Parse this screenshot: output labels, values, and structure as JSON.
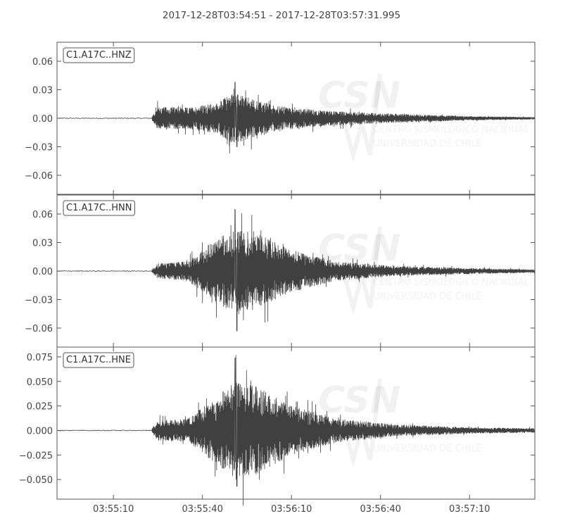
{
  "title": "2017-12-28T03:54:51  -  2017-12-28T03:57:31.995",
  "watermark": {
    "logo_text": "CSN",
    "line1": "CENTRO SISMOLÓGICO NACIONAL",
    "line2": "UNIVERSIDAD DE CHILE"
  },
  "colors": {
    "trace": "#404040",
    "axes": "#555555",
    "text": "#444444",
    "background": "#ffffff"
  },
  "chart_data": [
    {
      "type": "line",
      "label": "C1.A17C..HNZ",
      "x_start": "03:54:51",
      "x_end": "03:57:31.995",
      "ylim": [
        -0.08,
        0.08
      ],
      "yticks": [
        {
          "v": 0.06,
          "t": "0.06"
        },
        {
          "v": 0.03,
          "t": "0.03"
        },
        {
          "v": 0.0,
          "t": "0.00"
        },
        {
          "v": -0.03,
          "t": "−0.03"
        },
        {
          "v": -0.06,
          "t": "−0.06"
        }
      ],
      "onset": "03:55:23",
      "peak_time": "03:55:51",
      "peak_amplitude": 0.038,
      "min_amplitude": -0.03,
      "envelope": [
        [
          "03:55:23",
          0.002
        ],
        [
          "03:55:25",
          0.012
        ],
        [
          "03:55:35",
          0.011
        ],
        [
          "03:55:45",
          0.016
        ],
        [
          "03:55:50",
          0.027
        ],
        [
          "03:55:55",
          0.022
        ],
        [
          "03:56:05",
          0.013
        ],
        [
          "03:56:20",
          0.008
        ],
        [
          "03:56:40",
          0.005
        ],
        [
          "03:57:10",
          0.002
        ],
        [
          "03:57:31.995",
          0.001
        ]
      ]
    },
    {
      "type": "line",
      "label": "C1.A17C..HNN",
      "x_start": "03:54:51",
      "x_end": "03:57:31.995",
      "ylim": [
        -0.08,
        0.08
      ],
      "yticks": [
        {
          "v": 0.06,
          "t": "0.06"
        },
        {
          "v": 0.03,
          "t": "0.03"
        },
        {
          "v": 0.0,
          "t": "0.00"
        },
        {
          "v": -0.03,
          "t": "−0.03"
        },
        {
          "v": -0.06,
          "t": "−0.06"
        }
      ],
      "onset": "03:55:23",
      "peak_time": "03:55:51",
      "peak_amplitude": 0.065,
      "min_amplitude": -0.063,
      "envelope": [
        [
          "03:55:23",
          0.002
        ],
        [
          "03:55:25",
          0.008
        ],
        [
          "03:55:35",
          0.01
        ],
        [
          "03:55:43",
          0.03
        ],
        [
          "03:55:51",
          0.045
        ],
        [
          "03:55:58",
          0.04
        ],
        [
          "03:56:10",
          0.022
        ],
        [
          "03:56:25",
          0.01
        ],
        [
          "03:56:45",
          0.005
        ],
        [
          "03:57:10",
          0.003
        ],
        [
          "03:57:31.995",
          0.0015
        ]
      ]
    },
    {
      "type": "line",
      "label": "C1.A17C..HNE",
      "x_start": "03:54:51",
      "x_end": "03:57:31.995",
      "ylim": [
        -0.07,
        0.085
      ],
      "yticks": [
        {
          "v": 0.075,
          "t": "0.075"
        },
        {
          "v": 0.05,
          "t": "0.050"
        },
        {
          "v": 0.025,
          "t": "0.025"
        },
        {
          "v": 0.0,
          "t": "0.000"
        },
        {
          "v": -0.025,
          "t": "−0.025"
        },
        {
          "v": -0.05,
          "t": "−0.050"
        }
      ],
      "onset": "03:55:23",
      "peak_time": "03:55:51",
      "peak_amplitude": 0.074,
      "min_amplitude": -0.057,
      "envelope": [
        [
          "03:55:23",
          0.002
        ],
        [
          "03:55:25",
          0.01
        ],
        [
          "03:55:35",
          0.012
        ],
        [
          "03:55:43",
          0.03
        ],
        [
          "03:55:51",
          0.05
        ],
        [
          "03:55:58",
          0.045
        ],
        [
          "03:56:10",
          0.025
        ],
        [
          "03:56:25",
          0.012
        ],
        [
          "03:56:45",
          0.006
        ],
        [
          "03:57:10",
          0.003
        ],
        [
          "03:57:31.995",
          0.002
        ]
      ]
    }
  ],
  "x_axis": {
    "start": "03:54:51",
    "end": "03:57:31.995",
    "ticks": [
      "03:55:10",
      "03:55:40",
      "03:56:10",
      "03:56:40",
      "03:57:10"
    ]
  }
}
